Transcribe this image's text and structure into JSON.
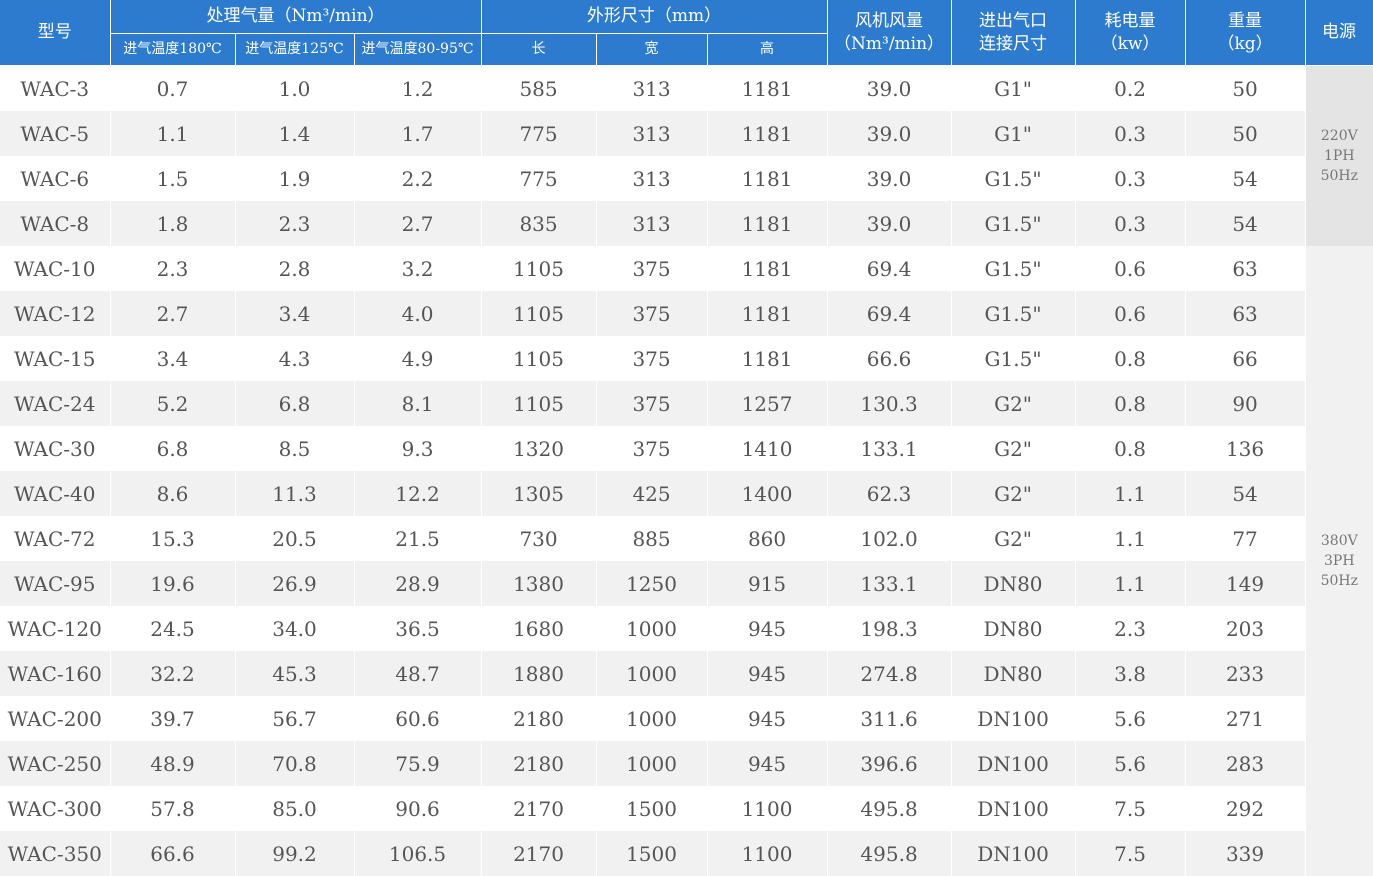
{
  "headers": {
    "model": "型号",
    "capacity_group": "处理气量（Nm³/min）",
    "capacity_180": "进气温度180℃",
    "capacity_125": "进气温度125℃",
    "capacity_80_95": "进气温度80-95℃",
    "dimension_group": "外形尺寸（mm）",
    "length": "长",
    "width": "宽",
    "height": "高",
    "fan_flow_line1": "风机风量",
    "fan_flow_line2": "（Nm³/min）",
    "connection_line1": "进出气口",
    "connection_line2": "连接尺寸",
    "power_use_line1": "耗电量",
    "power_use_line2": "（kw）",
    "weight_line1": "重量",
    "weight_line2": "（kg）",
    "power_supply": "电源"
  },
  "power_groups": [
    {
      "line1": "220V",
      "line2": "1PH",
      "line3": "50Hz"
    },
    {
      "line1": "380V",
      "line2": "3PH",
      "line3": "50Hz"
    }
  ],
  "rows": [
    {
      "model": "WAC-3",
      "c180": "0.7",
      "c125": "1.0",
      "c80": "1.2",
      "length": "585",
      "width": "313",
      "height": "1181",
      "fan": "39.0",
      "conn": "G1\"",
      "kw": "0.2",
      "kg": "50"
    },
    {
      "model": "WAC-5",
      "c180": "1.1",
      "c125": "1.4",
      "c80": "1.7",
      "length": "775",
      "width": "313",
      "height": "1181",
      "fan": "39.0",
      "conn": "G1\"",
      "kw": "0.3",
      "kg": "50"
    },
    {
      "model": "WAC-6",
      "c180": "1.5",
      "c125": "1.9",
      "c80": "2.2",
      "length": "775",
      "width": "313",
      "height": "1181",
      "fan": "39.0",
      "conn": "G1.5\"",
      "kw": "0.3",
      "kg": "54"
    },
    {
      "model": "WAC-8",
      "c180": "1.8",
      "c125": "2.3",
      "c80": "2.7",
      "length": "835",
      "width": "313",
      "height": "1181",
      "fan": "39.0",
      "conn": "G1.5\"",
      "kw": "0.3",
      "kg": "54"
    },
    {
      "model": "WAC-10",
      "c180": "2.3",
      "c125": "2.8",
      "c80": "3.2",
      "length": "1105",
      "width": "375",
      "height": "1181",
      "fan": "69.4",
      "conn": "G1.5\"",
      "kw": "0.6",
      "kg": "63"
    },
    {
      "model": "WAC-12",
      "c180": "2.7",
      "c125": "3.4",
      "c80": "4.0",
      "length": "1105",
      "width": "375",
      "height": "1181",
      "fan": "69.4",
      "conn": "G1.5\"",
      "kw": "0.6",
      "kg": "63"
    },
    {
      "model": "WAC-15",
      "c180": "3.4",
      "c125": "4.3",
      "c80": "4.9",
      "length": "1105",
      "width": "375",
      "height": "1181",
      "fan": "66.6",
      "conn": "G1.5\"",
      "kw": "0.8",
      "kg": "66"
    },
    {
      "model": "WAC-24",
      "c180": "5.2",
      "c125": "6.8",
      "c80": "8.1",
      "length": "1105",
      "width": "375",
      "height": "1257",
      "fan": "130.3",
      "conn": "G2\"",
      "kw": "0.8",
      "kg": "90"
    },
    {
      "model": "WAC-30",
      "c180": "6.8",
      "c125": "8.5",
      "c80": "9.3",
      "length": "1320",
      "width": "375",
      "height": "1410",
      "fan": "133.1",
      "conn": "G2\"",
      "kw": "0.8",
      "kg": "136"
    },
    {
      "model": "WAC-40",
      "c180": "8.6",
      "c125": "11.3",
      "c80": "12.2",
      "length": "1305",
      "width": "425",
      "height": "1400",
      "fan": "62.3",
      "conn": "G2\"",
      "kw": "1.1",
      "kg": "54"
    },
    {
      "model": "WAC-72",
      "c180": "15.3",
      "c125": "20.5",
      "c80": "21.5",
      "length": "730",
      "width": "885",
      "height": "860",
      "fan": "102.0",
      "conn": "G2\"",
      "kw": "1.1",
      "kg": "77"
    },
    {
      "model": "WAC-95",
      "c180": "19.6",
      "c125": "26.9",
      "c80": "28.9",
      "length": "1380",
      "width": "1250",
      "height": "915",
      "fan": "133.1",
      "conn": "DN80",
      "kw": "1.1",
      "kg": "149"
    },
    {
      "model": "WAC-120",
      "c180": "24.5",
      "c125": "34.0",
      "c80": "36.5",
      "length": "1680",
      "width": "1000",
      "height": "945",
      "fan": "198.3",
      "conn": "DN80",
      "kw": "2.3",
      "kg": "203"
    },
    {
      "model": "WAC-160",
      "c180": "32.2",
      "c125": "45.3",
      "c80": "48.7",
      "length": "1880",
      "width": "1000",
      "height": "945",
      "fan": "274.8",
      "conn": "DN80",
      "kw": "3.8",
      "kg": "233"
    },
    {
      "model": "WAC-200",
      "c180": "39.7",
      "c125": "56.7",
      "c80": "60.6",
      "length": "2180",
      "width": "1000",
      "height": "945",
      "fan": "311.6",
      "conn": "DN100",
      "kw": "5.6",
      "kg": "271"
    },
    {
      "model": "WAC-250",
      "c180": "48.9",
      "c125": "70.8",
      "c80": "75.9",
      "length": "2180",
      "width": "1000",
      "height": "945",
      "fan": "396.6",
      "conn": "DN100",
      "kw": "5.6",
      "kg": "283"
    },
    {
      "model": "WAC-300",
      "c180": "57.8",
      "c125": "85.0",
      "c80": "90.6",
      "length": "2170",
      "width": "1500",
      "height": "1100",
      "fan": "495.8",
      "conn": "DN100",
      "kw": "7.5",
      "kg": "292"
    },
    {
      "model": "WAC-350",
      "c180": "66.6",
      "c125": "99.2",
      "c80": "106.5",
      "length": "2170",
      "width": "1500",
      "height": "1100",
      "fan": "495.8",
      "conn": "DN100",
      "kw": "7.5",
      "kg": "339"
    }
  ]
}
